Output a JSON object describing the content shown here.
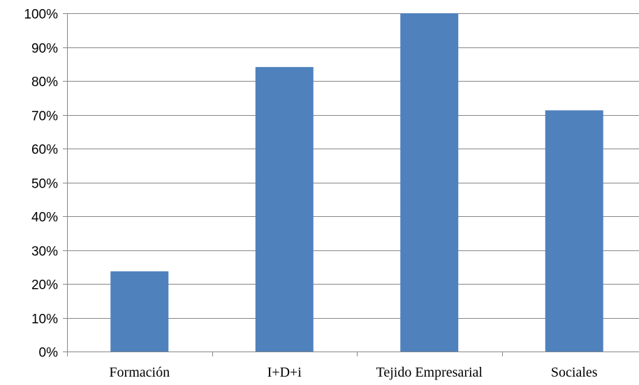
{
  "chart_data": {
    "type": "bar",
    "categories": [
      "Formación",
      "I+D+i",
      "Tejido Empresarial",
      "Sociales"
    ],
    "series": [
      {
        "values": [
          23.7,
          84.1,
          100,
          71.3
        ]
      }
    ],
    "title": "",
    "xlabel": "",
    "ylabel": "",
    "ylim": [
      0,
      100
    ],
    "yticks": [
      0,
      10,
      20,
      30,
      40,
      50,
      60,
      70,
      80,
      90,
      100
    ],
    "ytick_labels": [
      "0%",
      "10%",
      "20%",
      "30%",
      "40%",
      "50%",
      "60%",
      "70%",
      "80%",
      "90%",
      "100%"
    ],
    "grid": "horizontal",
    "legend": "none",
    "bar_color": "#4F81BD",
    "grid_color": "#868686"
  }
}
